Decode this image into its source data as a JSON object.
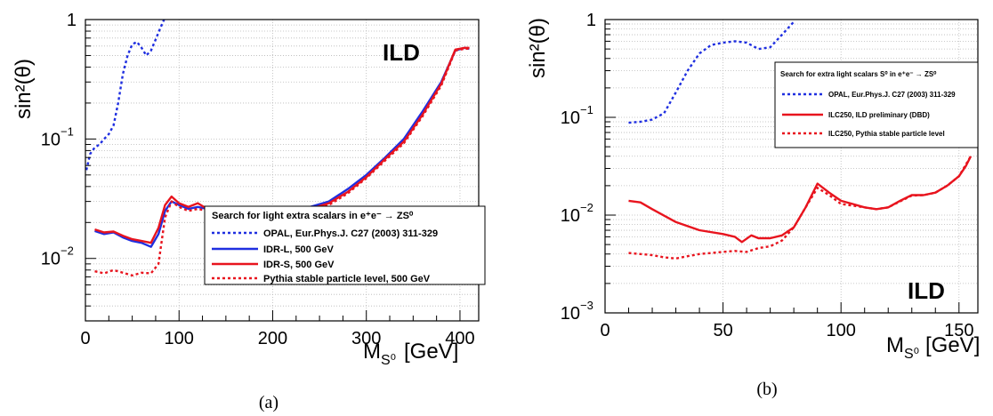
{
  "chart_data": [
    {
      "type": "line",
      "caption": "(a)",
      "stamp": "ILD",
      "ylabel": "sin²(θ)",
      "xlabel": "M",
      "xlabel_sub": "S⁰",
      "xlabel_unit": "[GeV]",
      "xlim": [
        0,
        420
      ],
      "ylim": [
        0.003,
        1
      ],
      "yscale": "log",
      "grid": true,
      "xticks": [
        "0",
        "100",
        "200",
        "300",
        "400"
      ],
      "yticks": [
        {
          "base": "10",
          "exp": "−2"
        },
        {
          "base": "10",
          "exp": "−1"
        },
        {
          "base": "1",
          "exp": ""
        }
      ],
      "legend": {
        "position": "bottom-right",
        "title": "Search for light extra scalars in e⁺e⁻ → ZS⁰",
        "entries": [
          "OPAL, Eur.Phys.J. C27 (2003) 311-329",
          "IDR-L, 500 GeV",
          "IDR-S, 500 GeV",
          "Pythia stable particle level, 500 GeV"
        ]
      },
      "series": [
        {
          "name": "OPAL, Eur.Phys.J. C27 (2003) 311-329",
          "color": "#1f2fe0",
          "style": "dotted",
          "x": [
            1,
            5,
            10,
            15,
            20,
            25,
            30,
            35,
            40,
            45,
            50,
            55,
            60,
            65,
            70,
            75,
            80,
            84
          ],
          "y": [
            0.055,
            0.075,
            0.085,
            0.09,
            0.1,
            0.11,
            0.13,
            0.2,
            0.35,
            0.5,
            0.62,
            0.65,
            0.58,
            0.5,
            0.55,
            0.68,
            0.85,
            1.0
          ]
        },
        {
          "name": "IDR-L, 500 GeV",
          "color": "#1f2fe0",
          "style": "solid",
          "x": [
            10,
            20,
            30,
            40,
            50,
            60,
            70,
            78,
            85,
            92,
            100,
            110,
            120,
            130,
            140,
            160,
            180,
            200,
            220,
            240,
            260,
            280,
            300,
            320,
            340,
            360,
            380,
            395,
            405,
            410
          ],
          "y": [
            0.017,
            0.016,
            0.0165,
            0.015,
            0.014,
            0.0135,
            0.0125,
            0.016,
            0.025,
            0.03,
            0.028,
            0.026,
            0.027,
            0.026,
            0.024,
            0.023,
            0.023,
            0.024,
            0.025,
            0.027,
            0.03,
            0.038,
            0.05,
            0.07,
            0.1,
            0.17,
            0.3,
            0.55,
            0.58,
            0.57
          ]
        },
        {
          "name": "IDR-S, 500 GeV",
          "color": "#e8141e",
          "style": "solid",
          "x": [
            10,
            20,
            30,
            40,
            50,
            60,
            70,
            78,
            85,
            92,
            100,
            110,
            120,
            130,
            140,
            160,
            180,
            200,
            220,
            240,
            260,
            280,
            300,
            320,
            340,
            360,
            380,
            395,
            405,
            410
          ],
          "y": [
            0.0175,
            0.0165,
            0.0168,
            0.0155,
            0.0145,
            0.014,
            0.0135,
            0.018,
            0.028,
            0.033,
            0.029,
            0.027,
            0.029,
            0.026,
            0.024,
            0.023,
            0.024,
            0.023,
            0.024,
            0.026,
            0.029,
            0.036,
            0.048,
            0.068,
            0.095,
            0.16,
            0.29,
            0.56,
            0.58,
            0.58
          ]
        },
        {
          "name": "Pythia stable particle level, 500 GeV",
          "color": "#e8141e",
          "style": "dotted",
          "x": [
            10,
            20,
            30,
            40,
            50,
            60,
            70,
            78,
            85,
            92,
            100,
            110,
            120,
            130,
            140,
            160,
            180,
            200,
            220,
            240,
            260,
            280,
            300,
            320,
            340,
            360,
            380,
            395,
            405,
            410
          ],
          "y": [
            0.0078,
            0.0075,
            0.008,
            0.0076,
            0.0072,
            0.0076,
            0.0075,
            0.009,
            0.022,
            0.03,
            0.027,
            0.025,
            0.026,
            0.025,
            0.023,
            0.022,
            0.023,
            0.022,
            0.023,
            0.025,
            0.028,
            0.035,
            0.047,
            0.066,
            0.092,
            0.155,
            0.28,
            0.55,
            0.57,
            0.57
          ]
        }
      ]
    },
    {
      "type": "line",
      "caption": "(b)",
      "stamp": "ILD",
      "ylabel": "sin²(θ)",
      "xlabel": "M",
      "xlabel_sub": "S⁰",
      "xlabel_unit": "[GeV]",
      "xlim": [
        0,
        158
      ],
      "ylim": [
        0.001,
        1
      ],
      "yscale": "log",
      "grid": true,
      "xticks": [
        "0",
        "50",
        "100",
        "150"
      ],
      "yticks": [
        {
          "base": "10",
          "exp": "−3"
        },
        {
          "base": "10",
          "exp": "−2"
        },
        {
          "base": "10",
          "exp": "−1"
        },
        {
          "base": "1",
          "exp": ""
        }
      ],
      "legend": {
        "position": "top-right",
        "title": "Search for extra light scalars S⁰ in e⁺e⁻ → ZS⁰",
        "entries": [
          "OPAL, Eur.Phys.J. C27 (2003) 311-329",
          "ILC250, ILD preliminary (DBD)",
          "ILC250, Pythia stable particle level"
        ]
      },
      "series": [
        {
          "name": "OPAL, Eur.Phys.J. C27 (2003) 311-329",
          "color": "#1f2fe0",
          "style": "dotted",
          "x": [
            10,
            15,
            20,
            25,
            30,
            35,
            40,
            45,
            50,
            55,
            60,
            65,
            70,
            75,
            80
          ],
          "y": [
            0.088,
            0.09,
            0.095,
            0.11,
            0.18,
            0.3,
            0.45,
            0.55,
            0.58,
            0.6,
            0.58,
            0.5,
            0.52,
            0.7,
            0.95
          ]
        },
        {
          "name": "ILC250, ILD preliminary (DBD)",
          "color": "#e8141e",
          "style": "solid",
          "x": [
            10,
            15,
            20,
            30,
            40,
            50,
            55,
            58,
            62,
            65,
            70,
            75,
            80,
            85,
            90,
            95,
            100,
            105,
            110,
            115,
            120,
            125,
            130,
            135,
            140,
            145,
            150,
            153,
            155
          ],
          "y": [
            0.014,
            0.0135,
            0.0115,
            0.0085,
            0.007,
            0.0064,
            0.006,
            0.0053,
            0.0062,
            0.0058,
            0.0058,
            0.0062,
            0.0075,
            0.012,
            0.021,
            0.017,
            0.014,
            0.013,
            0.012,
            0.0115,
            0.012,
            0.014,
            0.016,
            0.016,
            0.017,
            0.02,
            0.025,
            0.032,
            0.04
          ]
        },
        {
          "name": "ILC250, Pythia stable particle level",
          "color": "#e8141e",
          "style": "dotted",
          "x": [
            10,
            15,
            20,
            25,
            30,
            35,
            40,
            50,
            55,
            60,
            65,
            70,
            75,
            80,
            85,
            90,
            95,
            100,
            105,
            110,
            115,
            120,
            125,
            130,
            135,
            140,
            145,
            150,
            155
          ],
          "y": [
            0.0041,
            0.004,
            0.0039,
            0.0037,
            0.0036,
            0.0038,
            0.004,
            0.0042,
            0.0043,
            0.0042,
            0.0046,
            0.0048,
            0.0055,
            0.0075,
            0.012,
            0.019,
            0.016,
            0.013,
            0.0125,
            0.012,
            0.0115,
            0.012,
            0.0138,
            0.0158,
            0.016,
            0.017,
            0.02,
            0.025,
            0.04
          ]
        }
      ]
    }
  ]
}
